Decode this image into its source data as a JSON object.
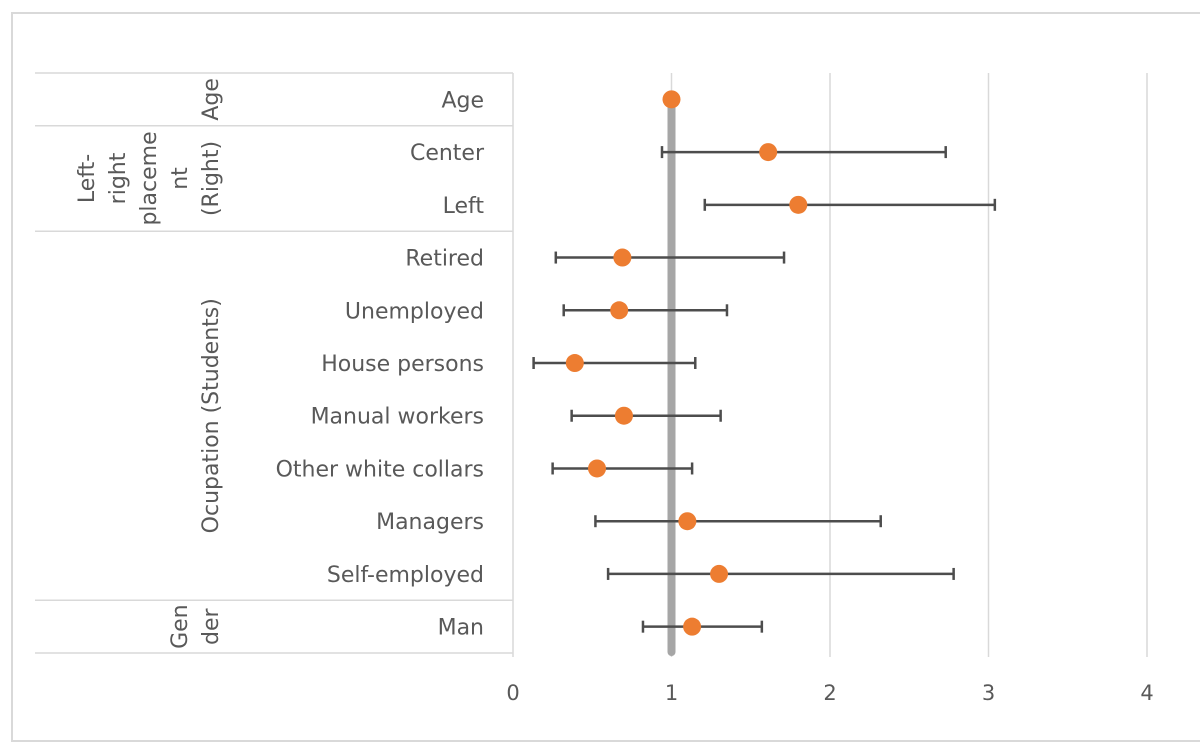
{
  "chart_data": {
    "type": "scatter",
    "title": "",
    "xlabel": "",
    "ylabel": "",
    "xlim": [
      0,
      4
    ],
    "xticks": [
      0,
      1,
      2,
      3,
      4
    ],
    "reference_line": 1,
    "grid": true,
    "colors": {
      "point": "#ed7d31",
      "errorbar": "#4d4d4d",
      "reference": "#a6a6a6",
      "grid": "#d9d9d9",
      "axis": "#d9d9d9",
      "text": "#595959"
    },
    "groups": [
      {
        "label_lines": [
          "Age"
        ],
        "rows": 1
      },
      {
        "label_lines": [
          "Left-",
          "right",
          "placeme",
          "nt",
          "(Right)"
        ],
        "rows": 2
      },
      {
        "label_lines": [
          "Ocupation (Students)"
        ],
        "rows": 7
      },
      {
        "label_lines": [
          "Gen",
          "der"
        ],
        "rows": 1
      }
    ],
    "points": [
      {
        "category": "Age",
        "estimate": 1.0,
        "lower": null,
        "upper": null
      },
      {
        "category": "Center",
        "estimate": 1.61,
        "lower": 0.94,
        "upper": 2.73
      },
      {
        "category": "Left",
        "estimate": 1.8,
        "lower": 1.21,
        "upper": 3.04
      },
      {
        "category": "Retired",
        "estimate": 0.69,
        "lower": 0.27,
        "upper": 1.71
      },
      {
        "category": "Unemployed",
        "estimate": 0.67,
        "lower": 0.32,
        "upper": 1.35
      },
      {
        "category": "House persons",
        "estimate": 0.39,
        "lower": 0.13,
        "upper": 1.15
      },
      {
        "category": "Manual workers",
        "estimate": 0.7,
        "lower": 0.37,
        "upper": 1.31
      },
      {
        "category": "Other white collars",
        "estimate": 0.53,
        "lower": 0.25,
        "upper": 1.13
      },
      {
        "category": "Managers",
        "estimate": 1.1,
        "lower": 0.52,
        "upper": 2.32
      },
      {
        "category": "Self-employed",
        "estimate": 1.3,
        "lower": 0.6,
        "upper": 2.78
      },
      {
        "category": "Man",
        "estimate": 1.13,
        "lower": 0.82,
        "upper": 1.57
      }
    ]
  }
}
